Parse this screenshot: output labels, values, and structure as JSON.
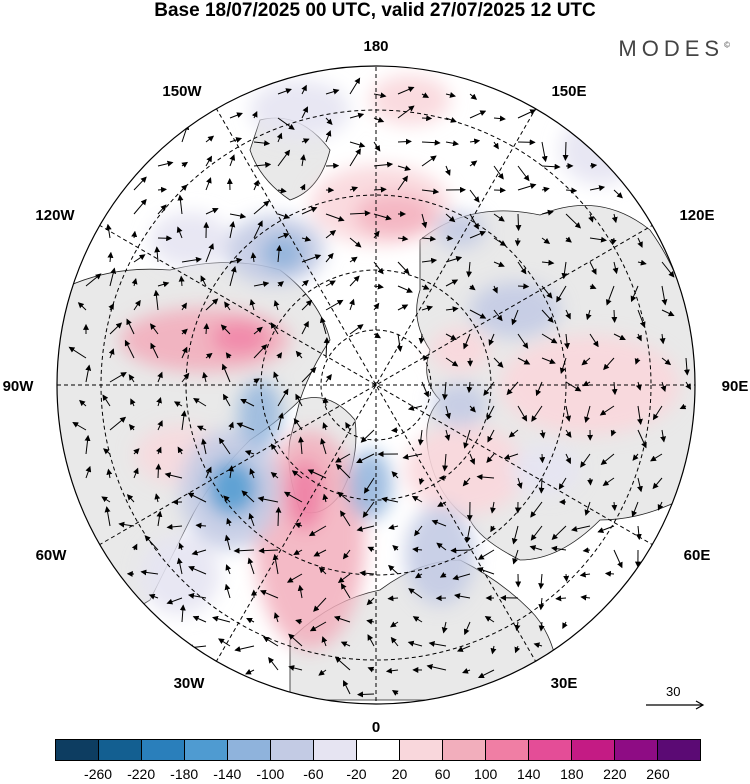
{
  "title": "Base 18/07/2025 00 UTC, valid 27/07/2025 12 UTC",
  "brand": "MODES",
  "brand_mark": "©",
  "longitude_labels": {
    "top": "180",
    "bottom": "0",
    "left": "90W",
    "right": "90E",
    "upper_left": "150W",
    "upper_right": "150E",
    "mid_upper_left": "120W",
    "mid_upper_right": "120E",
    "lower_left": "60W",
    "lower_right": "60E",
    "bottom_left": "30W",
    "bottom_right": "30E"
  },
  "reference_vector": "30",
  "colorbar": {
    "colors": [
      "#0d3d61",
      "#135f91",
      "#2a7fbb",
      "#4f9bd1",
      "#8fb3dc",
      "#c3cbe4",
      "#e6e4f2",
      "#ffffff",
      "#f9d7dc",
      "#f2aebc",
      "#f07ea4",
      "#e44d97",
      "#c41b84",
      "#8e0c84",
      "#5b0a74"
    ],
    "ticks": [
      "-260",
      "-220",
      "-180",
      "-140",
      "-100",
      "-60",
      "-20",
      "20",
      "60",
      "100",
      "140",
      "180",
      "220",
      "260"
    ]
  }
}
